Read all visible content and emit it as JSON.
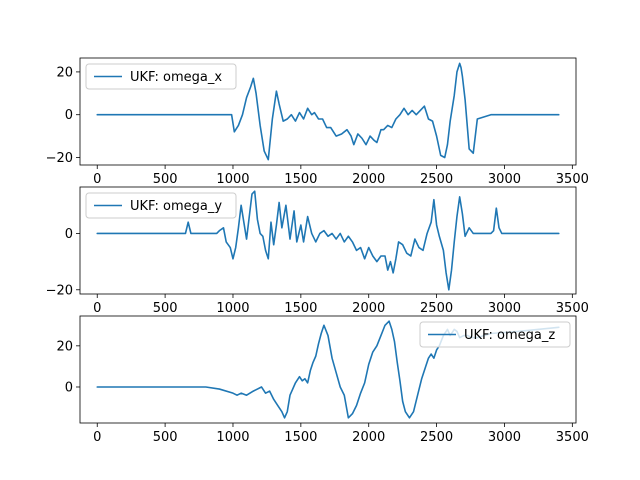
{
  "chart_data": [
    {
      "type": "line",
      "title": "",
      "xlabel": "",
      "ylabel": "",
      "xlim": [
        -127,
        3527
      ],
      "ylim": [
        -23.5,
        26.5
      ],
      "xticks": [
        0,
        500,
        1000,
        1500,
        2000,
        2500,
        3000,
        3500
      ],
      "yticks": [
        -20,
        0,
        20
      ],
      "legend_position": "upper left",
      "grid": false,
      "series": [
        {
          "name": "UKF: omega_x",
          "color": "#1f77b4",
          "x": [
            0,
            200,
            400,
            600,
            800,
            900,
            940,
            960,
            990,
            1010,
            1040,
            1070,
            1100,
            1130,
            1150,
            1170,
            1200,
            1230,
            1260,
            1290,
            1320,
            1340,
            1370,
            1400,
            1430,
            1460,
            1490,
            1520,
            1550,
            1580,
            1600,
            1630,
            1660,
            1690,
            1720,
            1760,
            1800,
            1840,
            1870,
            1890,
            1920,
            1950,
            1980,
            2010,
            2040,
            2060,
            2090,
            2110,
            2140,
            2170,
            2200,
            2230,
            2260,
            2290,
            2320,
            2350,
            2380,
            2410,
            2440,
            2470,
            2500,
            2530,
            2560,
            2580,
            2600,
            2630,
            2650,
            2670,
            2680,
            2690,
            2710,
            2740,
            2770,
            2800,
            2900,
            3100,
            3400
          ],
          "y": [
            0,
            0,
            0,
            0,
            0,
            0,
            0,
            0,
            0,
            -8,
            -5,
            0,
            8,
            13,
            17,
            10,
            -5,
            -17,
            -21,
            -2,
            11,
            5,
            -3,
            -2,
            0,
            -3,
            1,
            -2,
            3,
            0,
            1,
            -2,
            -2,
            -6,
            -6,
            -10,
            -9,
            -7,
            -10,
            -14,
            -9,
            -11,
            -14,
            -10,
            -12,
            -13,
            -7,
            -7,
            -5,
            -6,
            -2,
            0,
            3,
            0,
            2,
            0,
            2,
            4,
            -2,
            -3,
            -10,
            -19,
            -20,
            -14,
            -3,
            9,
            20,
            24,
            22,
            18,
            7,
            -16,
            -18,
            -2,
            0,
            0,
            0
          ]
        }
      ]
    },
    {
      "type": "line",
      "title": "",
      "xlabel": "",
      "ylabel": "",
      "xlim": [
        -127,
        3527
      ],
      "ylim": [
        -21.5,
        16.5
      ],
      "xticks": [
        0,
        500,
        1000,
        1500,
        2000,
        2500,
        3000,
        3500
      ],
      "yticks": [
        -20,
        0
      ],
      "legend_position": "upper left",
      "grid": false,
      "series": [
        {
          "name": "UKF: omega_y",
          "color": "#1f77b4",
          "x": [
            0,
            200,
            400,
            600,
            650,
            670,
            690,
            700,
            800,
            880,
            900,
            930,
            950,
            980,
            1000,
            1020,
            1040,
            1060,
            1080,
            1100,
            1120,
            1140,
            1160,
            1180,
            1200,
            1220,
            1240,
            1260,
            1280,
            1300,
            1320,
            1340,
            1360,
            1390,
            1420,
            1450,
            1470,
            1500,
            1520,
            1550,
            1580,
            1610,
            1640,
            1670,
            1700,
            1730,
            1760,
            1790,
            1820,
            1850,
            1880,
            1910,
            1940,
            1970,
            2000,
            2030,
            2060,
            2090,
            2120,
            2140,
            2160,
            2180,
            2200,
            2220,
            2250,
            2280,
            2310,
            2340,
            2370,
            2400,
            2430,
            2460,
            2480,
            2500,
            2520,
            2550,
            2570,
            2590,
            2610,
            2630,
            2650,
            2670,
            2690,
            2710,
            2740,
            2770,
            2800,
            2830,
            2860,
            2900,
            2920,
            2940,
            2960,
            2980,
            3000,
            3100,
            3200,
            3400
          ],
          "y": [
            0,
            0,
            0,
            0,
            0,
            4,
            0,
            0,
            0,
            0,
            1,
            2,
            -3,
            -5,
            -9,
            -5,
            2,
            10,
            4,
            -2,
            6,
            14,
            15,
            5,
            0,
            -1,
            -6,
            -9,
            4,
            -4,
            3,
            11,
            2,
            10,
            -2,
            8,
            -3,
            3,
            -3,
            6,
            0,
            -3,
            0,
            1,
            -1,
            0,
            -2,
            0,
            -3,
            -1,
            -3,
            -6,
            -5,
            -9,
            -5,
            -8,
            -10,
            -8,
            -8,
            -13,
            -10,
            -14,
            -9,
            -3,
            -4,
            -7,
            -8,
            -2,
            -5,
            -6,
            0,
            4,
            12,
            3,
            -1,
            -6,
            -14,
            -20,
            -13,
            -3,
            6,
            13,
            7,
            -1,
            2,
            0,
            0,
            0,
            0,
            0,
            1,
            9,
            2,
            0,
            0,
            0,
            0,
            0
          ]
        }
      ]
    },
    {
      "type": "line",
      "title": "",
      "xlabel": "",
      "ylabel": "",
      "xlim": [
        -127,
        3527
      ],
      "ylim": [
        -17.5,
        34.5
      ],
      "xticks": [
        0,
        500,
        1000,
        1500,
        2000,
        2500,
        3000,
        3500
      ],
      "yticks": [
        0,
        20
      ],
      "legend_position": "upper right",
      "grid": false,
      "series": [
        {
          "name": "UKF: omega_z",
          "color": "#1f77b4",
          "x": [
            0,
            200,
            400,
            600,
            800,
            900,
            1000,
            1030,
            1060,
            1100,
            1150,
            1180,
            1210,
            1240,
            1270,
            1300,
            1330,
            1360,
            1380,
            1400,
            1420,
            1440,
            1460,
            1490,
            1510,
            1530,
            1550,
            1570,
            1590,
            1610,
            1630,
            1650,
            1670,
            1700,
            1730,
            1760,
            1790,
            1820,
            1850,
            1880,
            1910,
            1940,
            1970,
            2000,
            2030,
            2060,
            2090,
            2120,
            2150,
            2170,
            2190,
            2210,
            2230,
            2250,
            2270,
            2300,
            2330,
            2360,
            2390,
            2420,
            2440,
            2460,
            2480,
            2500,
            2520,
            2550,
            2580,
            2600,
            2630,
            2650,
            2670,
            2700,
            2730,
            2760,
            2800,
            2900,
            3100,
            3400
          ],
          "y": [
            0,
            0,
            0,
            0,
            0,
            -1,
            -3,
            -4,
            -3,
            -4,
            -2,
            -1,
            0,
            -3,
            -2,
            -6,
            -9,
            -12,
            -15,
            -12,
            -4,
            -1,
            2,
            5,
            3,
            4,
            2,
            8,
            12,
            15,
            21,
            26,
            30,
            25,
            14,
            7,
            0,
            -4,
            -15,
            -13,
            -9,
            -3,
            2,
            11,
            17,
            20,
            25,
            30,
            32,
            28,
            22,
            12,
            3,
            -7,
            -12,
            -15,
            -12,
            -4,
            4,
            10,
            14,
            16,
            14,
            18,
            20,
            25,
            28,
            25,
            28,
            27,
            24,
            25,
            25,
            24,
            24,
            26,
            27,
            29
          ]
        }
      ]
    }
  ]
}
